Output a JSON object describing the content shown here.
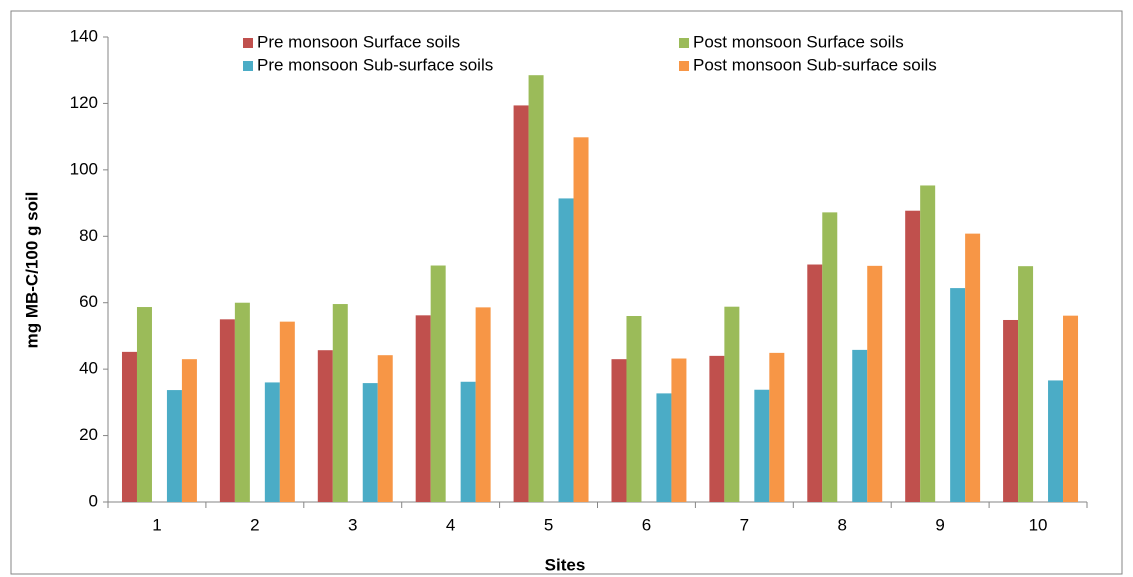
{
  "chart_data": {
    "type": "bar",
    "x_label": "Sites",
    "y_label": "mg MB-C/100 g soil",
    "categories": [
      "1",
      "2",
      "3",
      "4",
      "5",
      "6",
      "7",
      "8",
      "9",
      "10"
    ],
    "series": [
      {
        "name": "Pre monsoon Surface soils",
        "color": "#c0504d",
        "values": [
          45.2,
          55,
          45.7,
          56.2,
          119.4,
          43,
          44,
          71.5,
          87.7,
          54.8
        ]
      },
      {
        "name": "Post monsoon Surface soils",
        "color": "#9bbb59",
        "values": [
          58.7,
          60,
          59.6,
          71.2,
          128.5,
          56,
          58.8,
          87.2,
          95.3,
          71
        ]
      },
      {
        "name": "Pre monsoon Sub-surface soils",
        "color": "#4bacc6",
        "values": [
          33.7,
          36,
          35.8,
          36.2,
          91.4,
          32.7,
          33.8,
          45.8,
          64.4,
          36.6
        ]
      },
      {
        "name": "Post monsoon Sub-surface soils",
        "color": "#f79646",
        "values": [
          43,
          54.3,
          44.2,
          58.6,
          109.8,
          43.2,
          44.9,
          71.1,
          80.8,
          56.1
        ]
      }
    ],
    "ylim": [
      0,
      140
    ],
    "yticks": [
      0,
      20,
      40,
      60,
      80,
      100,
      120,
      140
    ],
    "legend": "top"
  }
}
